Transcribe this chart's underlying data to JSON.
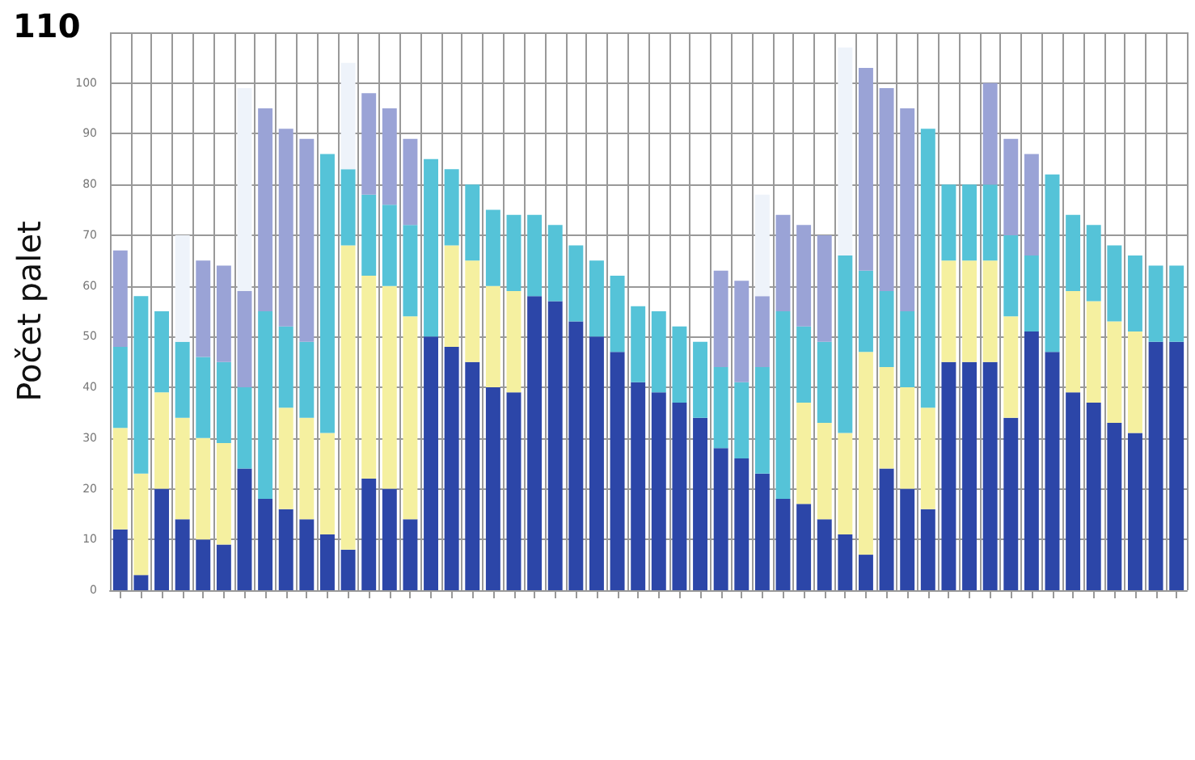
{
  "chart_data": {
    "type": "bar",
    "stacked": true,
    "ylabel": "Počet palet",
    "categories": [
      null,
      null,
      null,
      null,
      null,
      null,
      null,
      null,
      null,
      null,
      null,
      null,
      null,
      null,
      null,
      null,
      null,
      null,
      null,
      null,
      null,
      null,
      null,
      null,
      null,
      null,
      null,
      null,
      null,
      null,
      null,
      null,
      null,
      null,
      null,
      null,
      null,
      null,
      null,
      null,
      null,
      null,
      null,
      null,
      null,
      null,
      null,
      null,
      null,
      null,
      null,
      null
    ],
    "series": [
      {
        "color": "#2c46a8",
        "values": [
          12,
          3,
          20,
          14,
          10,
          9,
          24,
          18,
          16,
          14,
          11,
          8,
          22,
          20,
          14,
          50,
          48,
          45,
          40,
          39,
          58,
          57,
          53,
          50,
          47,
          41,
          39,
          37,
          34,
          28,
          26,
          23,
          18,
          17,
          14,
          11,
          7,
          24,
          20,
          16,
          45,
          45,
          45,
          34,
          51,
          47,
          39,
          37,
          33,
          31,
          49,
          49
        ]
      },
      {
        "color": "#f5f0a0",
        "values": [
          20,
          20,
          19,
          20,
          20,
          20,
          null,
          null,
          20,
          20,
          20,
          60,
          40,
          40,
          40,
          null,
          20,
          20,
          20,
          20,
          null,
          null,
          null,
          null,
          null,
          null,
          null,
          null,
          null,
          null,
          null,
          null,
          null,
          20,
          19,
          20,
          40,
          20,
          20,
          20,
          20,
          20,
          20,
          20,
          null,
          null,
          20,
          20,
          20,
          20,
          null,
          null
        ]
      },
      {
        "color": "#55c3d8",
        "values": [
          16,
          35,
          16,
          15,
          16,
          16,
          16,
          37,
          16,
          15,
          55,
          15,
          16,
          16,
          18,
          35,
          15,
          15,
          15,
          15,
          16,
          15,
          15,
          15,
          15,
          15,
          16,
          15,
          15,
          16,
          15,
          21,
          37,
          15,
          16,
          35,
          16,
          15,
          15,
          55,
          15,
          15,
          15,
          16,
          15,
          35,
          15,
          15,
          15,
          15,
          15,
          15
        ]
      },
      {
        "color": "#9aa3d6",
        "values": [
          19,
          null,
          null,
          null,
          19,
          19,
          19,
          40,
          39,
          40,
          null,
          null,
          20,
          19,
          17,
          null,
          null,
          null,
          null,
          null,
          null,
          null,
          null,
          null,
          null,
          null,
          null,
          null,
          null,
          19,
          20,
          14,
          19,
          20,
          21,
          null,
          40,
          40,
          40,
          null,
          null,
          null,
          20,
          19,
          20,
          null,
          null,
          null,
          null,
          null,
          null,
          null
        ]
      },
      {
        "color": "#eef3fa",
        "values": [
          null,
          null,
          null,
          21,
          null,
          null,
          40,
          null,
          null,
          null,
          null,
          21,
          null,
          null,
          null,
          null,
          null,
          null,
          null,
          null,
          null,
          null,
          null,
          null,
          null,
          null,
          null,
          null,
          null,
          null,
          null,
          20,
          null,
          null,
          null,
          41,
          null,
          null,
          null,
          null,
          null,
          null,
          null,
          null,
          null,
          null,
          null,
          null,
          null,
          null,
          null,
          null
        ]
      }
    ],
    "ylim": [
      0,
      110
    ],
    "yticks": [
      0,
      10,
      20,
      30,
      40,
      50,
      60,
      70,
      80,
      90,
      100,
      {
        "value": 110,
        "label": null
      }
    ],
    "grid": true,
    "annotations": [
      "110"
    ]
  }
}
